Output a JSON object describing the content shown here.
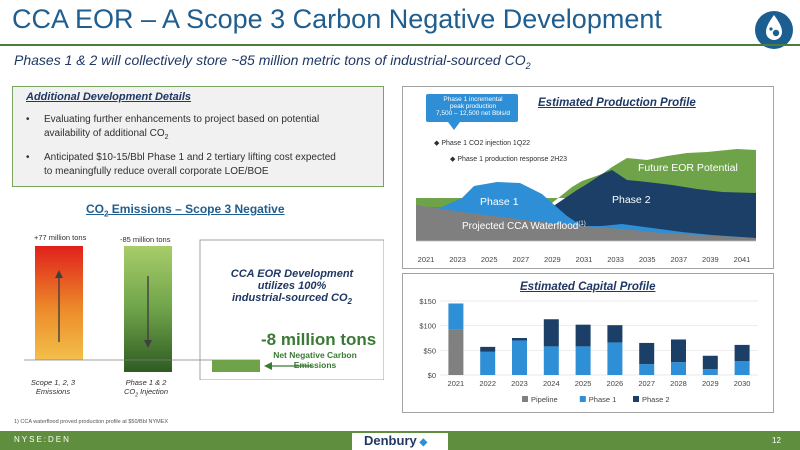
{
  "header": {
    "title": "CCA EOR – A Scope 3 Carbon Negative Development",
    "subtitle_main": "Phases 1 & 2 will collectively store ~85 million metric tons of industrial-sourced CO",
    "subtitle_sub": "2"
  },
  "details": {
    "heading": "Additional Development Details",
    "bullet1_a": "Evaluating further enhancements to project based on potential",
    "bullet1_b": "availability of additional CO",
    "bullet1_sub": "2",
    "bullet2_a": "Anticipated $10-15/Bbl Phase 1 and 2 tertiary lifting cost expected",
    "bullet2_b": "to meaningfully reduce overall corporate LOE/BOE"
  },
  "emissions": {
    "title_a": "CO",
    "title_sub": "2",
    "title_b": " Emissions – Scope 3 Negative",
    "bar1_value_label": "+77 million tons",
    "bar2_value_label": "-85 million tons",
    "bar1_label_a": "Scope 1, 2, 3",
    "bar1_label_b": "Emissions",
    "bar2_label_a": "Phase 1 & 2",
    "bar2_label_b": "CO",
    "bar2_label_sub": "2",
    "bar2_label_c": " Injection",
    "cca_a": "CCA EOR Development",
    "cca_b": "utilizes 100%",
    "cca_c": "industrial-sourced CO",
    "cca_sub": "2",
    "net_big": "-8 million tons",
    "net_small_a": "Net Negative Carbon",
    "net_small_b": "Emissions"
  },
  "production_chart": {
    "title": "Estimated Production Profile",
    "callout_a": "Phase 1 incremental",
    "callout_b": "peak production",
    "callout_c": "7,500 – 12,500 net Bbls/d",
    "marker1": "Phase 1 CO2 injection 1Q22",
    "marker2": "Phase 1 production response 2H23",
    "label_future": "Future EOR Potential",
    "label_phase1": "Phase 1",
    "label_phase2": "Phase 2",
    "label_waterflood": "Projected CCA Waterflood",
    "label_waterflood_sup": "(1)",
    "x_ticks": [
      "2021",
      "2023",
      "2025",
      "2027",
      "2029",
      "2031",
      "2033",
      "2035",
      "2037",
      "2039",
      "2041"
    ]
  },
  "capital_chart": {
    "title": "Estimated Capital Profile",
    "legend": [
      "Pipeline",
      "Phase 1",
      "Phase 2"
    ]
  },
  "colors": {
    "pipeline": "#808080",
    "phase1": "#2e8fd6",
    "phase2": "#1b3f66",
    "future": "#6fa34a",
    "waterflood": "#595959",
    "accent_green": "#5f8f3e",
    "title_blue": "#1f5e8e"
  },
  "chart_data": {
    "type": "bar",
    "title": "Estimated Capital Profile",
    "categories": [
      "2021",
      "2022",
      "2023",
      "2024",
      "2025",
      "2026",
      "2027",
      "2028",
      "2029",
      "2030"
    ],
    "ylim": [
      0,
      150
    ],
    "y_ticks": [
      "$0",
      "$50",
      "$100",
      "$150"
    ],
    "stacked": true,
    "series": [
      {
        "name": "Pipeline",
        "values": [
          92,
          0,
          0,
          0,
          0,
          0,
          0,
          0,
          0,
          0
        ]
      },
      {
        "name": "Phase 1",
        "values": [
          53,
          47,
          70,
          58,
          58,
          66,
          22,
          26,
          12,
          28
        ]
      },
      {
        "name": "Phase 2",
        "values": [
          0,
          10,
          5,
          55,
          44,
          35,
          43,
          46,
          27,
          33
        ]
      }
    ]
  },
  "footer": {
    "footnote": "1)   CCA waterflood proved production profile at $50/Bbl NYMEX",
    "ticker": "NYSE:DEN",
    "logo_text": "Denbury",
    "page": "12"
  }
}
